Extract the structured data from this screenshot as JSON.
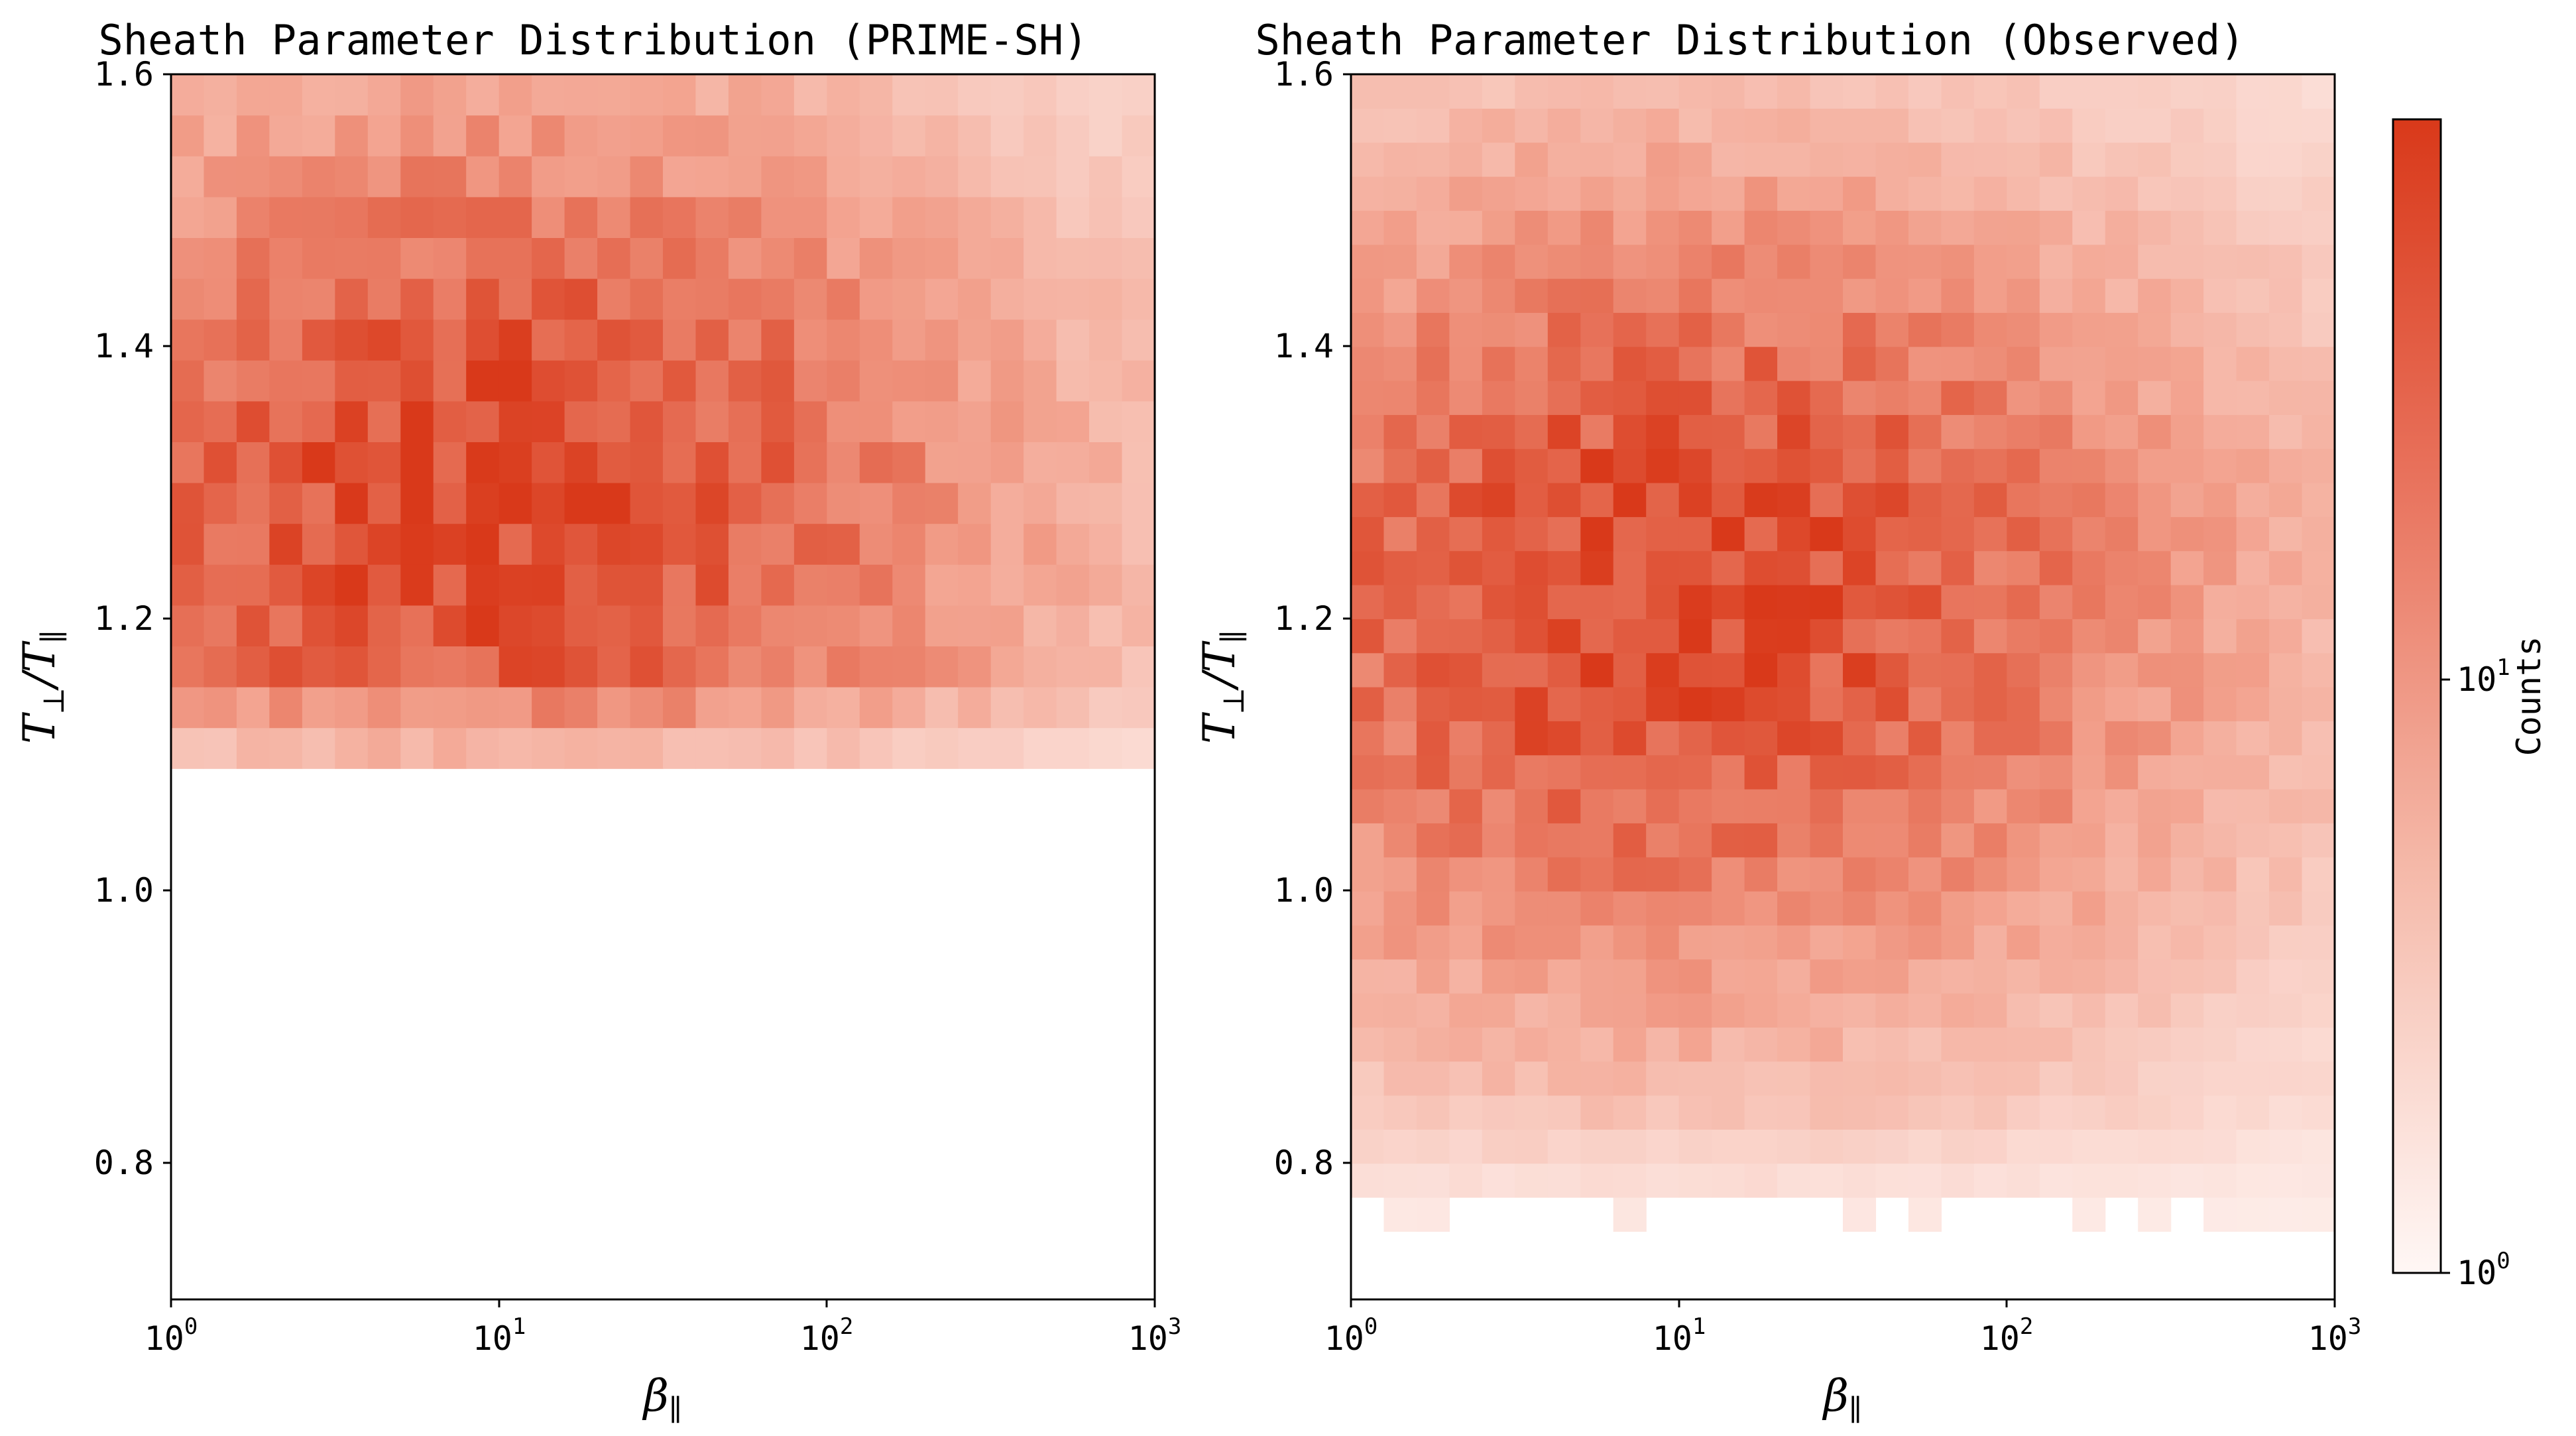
{
  "chart_data": [
    {
      "type": "heatmap",
      "title": "Sheath Parameter Distribution (PRIME-SH)",
      "xlabel": "β∥",
      "ylabel": "T⊥/T∥",
      "xscale": "log",
      "xlim": [
        1,
        1000
      ],
      "ylim": [
        0.7,
        1.6
      ],
      "xticks": [
        {
          "base": "10",
          "exp": "0"
        },
        {
          "base": "10",
          "exp": "1"
        },
        {
          "base": "10",
          "exp": "2"
        },
        {
          "base": "10",
          "exp": "3"
        }
      ],
      "yticks": [
        "0.8",
        "1.0",
        "1.2",
        "1.4",
        "1.6"
      ],
      "colormap": "white-to-red (log counts)",
      "colors": {
        "low": "#fdf0ec",
        "high": "#d9391a"
      },
      "grid": false,
      "bins": {
        "x_bins": 30,
        "y_bins": 30,
        "x_range_log10": [
          0,
          3
        ],
        "y_range": [
          0.7,
          1.6
        ]
      },
      "density_model": {
        "peak_log10_beta": 0.95,
        "peak_ratio": 1.29,
        "y_min_cutoff": 1.08,
        "seed": 7
      }
    },
    {
      "type": "heatmap",
      "title": "Sheath Parameter Distribution (Observed)",
      "xlabel": "β∥",
      "ylabel": "T⊥/T∥",
      "xscale": "log",
      "xlim": [
        1,
        1000
      ],
      "ylim": [
        0.7,
        1.6
      ],
      "xticks": [
        {
          "base": "10",
          "exp": "0"
        },
        {
          "base": "10",
          "exp": "1"
        },
        {
          "base": "10",
          "exp": "2"
        },
        {
          "base": "10",
          "exp": "3"
        }
      ],
      "yticks": [
        "0.8",
        "1.0",
        "1.2",
        "1.4",
        "1.6"
      ],
      "colormap": "white-to-red (log counts)",
      "colors": {
        "low": "#fdf0ec",
        "high": "#d9391a"
      },
      "grid": false,
      "bins": {
        "x_bins": 30,
        "y_bins": 36,
        "x_range_log10": [
          0,
          3
        ],
        "y_range": [
          0.7,
          1.6
        ]
      },
      "density_model": {
        "peak_log10_beta": 1.0,
        "peak_ratio": 1.22,
        "y_min_cutoff": 0.76,
        "seed": 13
      }
    }
  ],
  "colorbar": {
    "label": "Counts",
    "scale": "log",
    "ticks": [
      {
        "base": "10",
        "exp": "0"
      },
      {
        "base": "10",
        "exp": "1"
      }
    ],
    "range": [
      1,
      70
    ]
  }
}
